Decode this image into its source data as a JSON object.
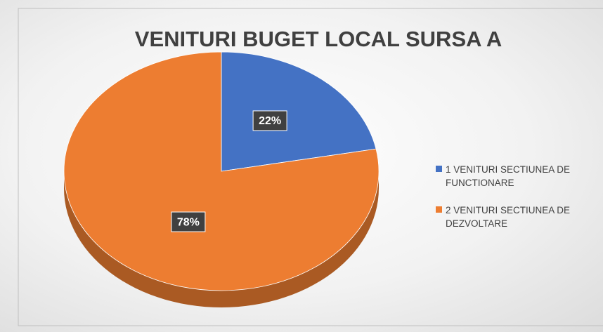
{
  "chart_data": {
    "type": "pie",
    "title": "VENITURI BUGET LOCAL SURSA A",
    "categories": [
      "1 VENITURI SECTIUNEA DE FUNCTIONARE",
      "2 VENITURI SECTIUNEA DE DEZVOLTARE"
    ],
    "values": [
      22,
      78
    ],
    "value_labels": [
      "22%",
      "78%"
    ],
    "colors": [
      "#4472c4",
      "#ed7d31"
    ],
    "legend": "right"
  }
}
